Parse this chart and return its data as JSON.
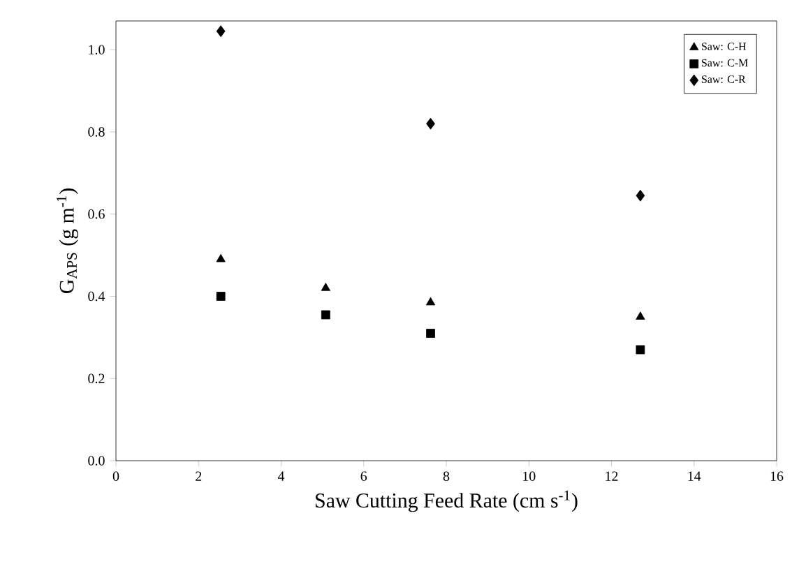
{
  "chart_data": {
    "type": "scatter",
    "xlabel": "Saw Cutting Feed Rate (cm s$^{-1}$)",
    "ylabel": "G$_{APS}$ (g m$^{-1}$)",
    "xlim": [
      0,
      16
    ],
    "xticks": [
      0,
      2,
      4,
      6,
      8,
      10,
      12,
      14,
      16
    ],
    "ylim": [
      0,
      1.07
    ],
    "yticks": [
      {
        "value": 0,
        "label": "0.0"
      },
      {
        "value": 0.2,
        "label": "0.2"
      },
      {
        "value": 0.4,
        "label": "0.4"
      },
      {
        "value": 0.6,
        "label": "0.6"
      },
      {
        "value": 0.8,
        "label": "0.8"
      },
      {
        "value": 1.0,
        "label": "1.0"
      }
    ],
    "grid": false,
    "legend": "top right",
    "series": [
      {
        "name": "Saw: C-H",
        "color": "#000000",
        "marker": "triangle",
        "x": [
          2.54,
          5.08,
          7.62,
          12.7
        ],
        "values": [
          0.49,
          0.42,
          0.385,
          0.35
        ]
      },
      {
        "name": "Saw: C-M",
        "color": "#000000",
        "marker": "square",
        "x": [
          2.54,
          5.08,
          7.62,
          12.7
        ],
        "values": [
          0.4,
          0.355,
          0.31,
          0.27
        ]
      },
      {
        "name": "Saw: C-R",
        "color": "#000000",
        "marker": "diamond",
        "x": [
          2.54,
          7.62,
          12.7
        ],
        "values": [
          1.045,
          0.82,
          0.645
        ]
      }
    ]
  }
}
